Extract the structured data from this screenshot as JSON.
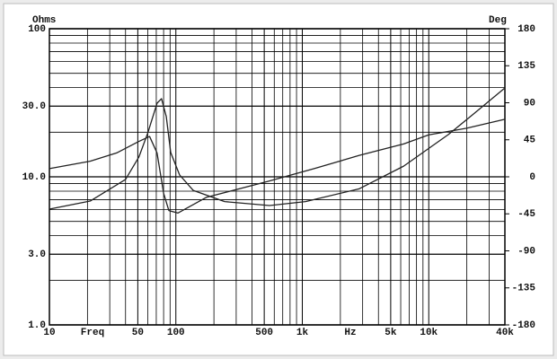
{
  "chart_data": {
    "type": "line",
    "ylabel": "Ohms",
    "y2label": "Deg",
    "xlabel": [
      "Freq",
      "Hz"
    ],
    "xscale": "log",
    "yscale": "log",
    "xlim": [
      10,
      40000
    ],
    "ylim": [
      1,
      100
    ],
    "y2lim": [
      -180,
      180
    ],
    "xticks": [
      10,
      50,
      100,
      500,
      {
        "value": 1000,
        "label": "1k"
      },
      {
        "value": 5000,
        "label": "5k"
      },
      {
        "value": 10000,
        "label": "10k"
      },
      {
        "value": 40000,
        "label": "40k"
      }
    ],
    "yticks": [
      {
        "value": 1,
        "label": "1.0"
      },
      {
        "value": 3,
        "label": "3.0"
      },
      {
        "value": 10,
        "label": "10.0"
      },
      {
        "value": 30,
        "label": "30.0"
      },
      100
    ],
    "y2ticks": [
      180,
      135,
      90,
      45,
      0,
      -45,
      -90,
      -135,
      -180
    ],
    "x_minor_grid": [
      20,
      30,
      40,
      60,
      70,
      80,
      90,
      200,
      300,
      400,
      600,
      700,
      800,
      900,
      2000,
      3000,
      4000,
      6000,
      7000,
      8000,
      9000,
      20000,
      30000
    ],
    "y_minor_grid": [
      2,
      4,
      5,
      6,
      7,
      8,
      9,
      20,
      40,
      50,
      60,
      70,
      80,
      90
    ],
    "grid": true,
    "series": [
      {
        "color": "#222222",
        "x": [
          10,
          21,
          40,
          51,
          60,
          71,
          77,
          84,
          91,
          107,
          137,
          243,
          550,
          1060,
          2820,
          6330,
          14300,
          23500,
          40000
        ],
        "values": [
          6.05,
          6.86,
          9.6,
          13.6,
          19.8,
          31.4,
          33.7,
          25.5,
          14.6,
          10.3,
          8.1,
          6.8,
          6.4,
          6.8,
          8.3,
          11.8,
          19.3,
          27.3,
          39.8
        ]
      },
      {
        "color": "#222222",
        "axis": "y2",
        "x": [
          10,
          21,
          34,
          51,
          62,
          71,
          80,
          88,
          104,
          174,
          550,
          1240,
          2820,
          6330,
          10000,
          19900,
          40000
        ],
        "values": [
          10,
          19,
          29,
          43,
          49,
          29,
          -20,
          -41,
          -44,
          -25,
          -5,
          10,
          26,
          40,
          51,
          59,
          70
        ]
      }
    ]
  }
}
